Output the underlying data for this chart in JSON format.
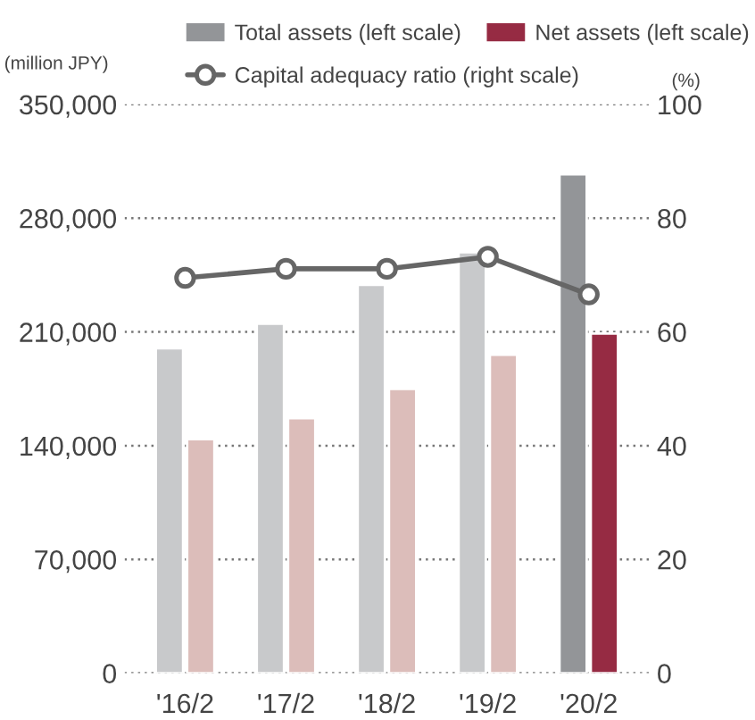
{
  "chart_data": {
    "type": "bar",
    "ylabel": "(million JPY)",
    "y2label": "(%)",
    "categories": [
      "'16/2",
      "'17/2",
      "'18/2",
      "'19/2",
      "'20/2"
    ],
    "series": [
      {
        "name": "Total assets (left scale)",
        "color": "#939598",
        "colors": [
          "#c8c9cb",
          "#c8c9cb",
          "#c8c9cb",
          "#c8c9cb",
          "#939598"
        ],
        "values": [
          200000,
          215000,
          239000,
          259000,
          307000
        ]
      },
      {
        "name": "Net assets (left scale)",
        "color": "#962b43",
        "colors": [
          "#dcbdba",
          "#dcbdba",
          "#dcbdba",
          "#dcbdba",
          "#962b43"
        ],
        "values": [
          144000,
          157000,
          175000,
          196000,
          209000
        ]
      },
      {
        "name": "Capital adequacy ratio (right scale)",
        "type": "line",
        "axis": "y2",
        "color": "#666666",
        "marker": "circle",
        "values": [
          69.5,
          71.1,
          71.1,
          73.2,
          66.6
        ]
      }
    ],
    "ylim": [
      0,
      350000
    ],
    "yticks": [
      0,
      {
        "value": 70000,
        "label": "70,000"
      },
      {
        "value": 140000,
        "label": "140,000"
      },
      {
        "value": 210000,
        "label": "210,000"
      },
      {
        "value": 280000,
        "label": "280,000"
      },
      {
        "value": 350000,
        "label": "350,000"
      }
    ],
    "y2lim": [
      0,
      100
    ],
    "y2ticks": [
      0,
      20,
      40,
      60,
      80,
      100
    ],
    "grid": "y",
    "legend": "top"
  }
}
